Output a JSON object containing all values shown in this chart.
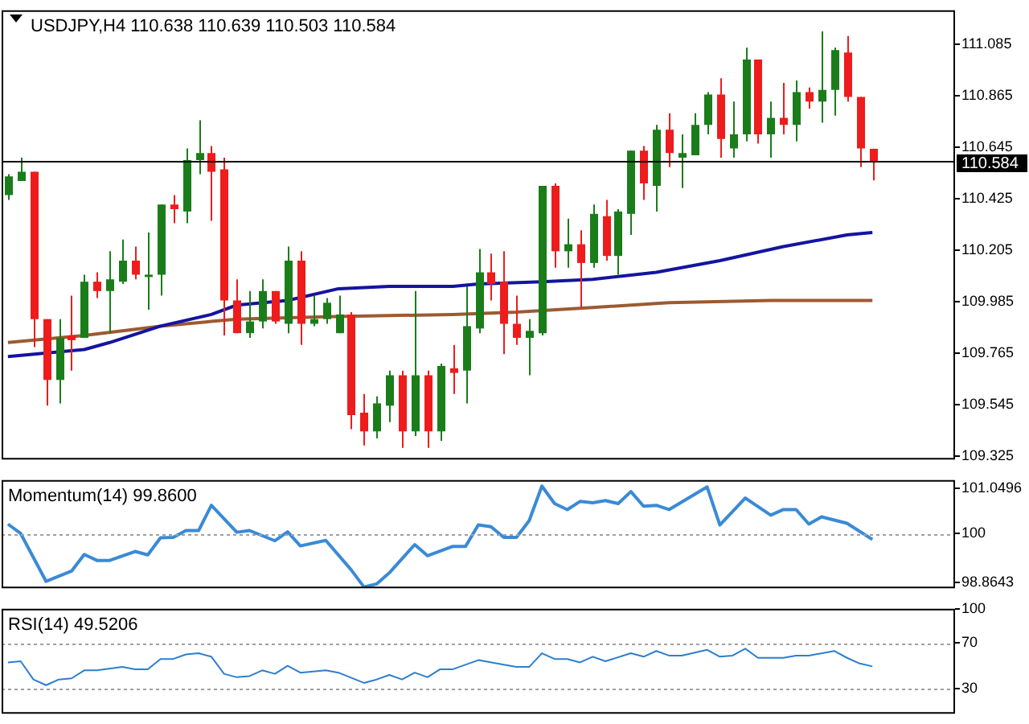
{
  "chart_data": [
    {
      "type": "candlestick",
      "title": "USDJPY,H4 110.638 110.639 110.503 110.584",
      "categories": [
        null,
        null,
        null,
        null,
        null,
        null,
        null,
        null,
        null,
        null,
        null,
        null,
        null,
        null,
        null,
        null,
        null,
        null,
        null,
        null,
        null,
        null,
        null,
        null,
        null,
        null,
        null,
        null,
        null,
        null,
        null,
        null,
        null,
        null,
        null,
        null,
        null,
        null,
        null,
        null,
        null,
        null,
        null,
        null,
        null,
        null,
        null,
        null,
        null,
        null,
        null,
        null,
        null,
        null,
        null,
        null,
        null,
        null,
        null,
        null,
        null,
        null,
        null,
        null,
        null,
        null,
        null,
        null,
        null,
        null,
        null,
        null,
        null,
        null,
        null
      ],
      "ohlc": [
        [
          110.44,
          110.53,
          110.42,
          110.52
        ],
        [
          110.5,
          110.6,
          110.5,
          110.54
        ],
        [
          110.54,
          110.54,
          109.79,
          109.91
        ],
        [
          109.91,
          109.91,
          109.54,
          109.65
        ],
        [
          109.65,
          109.91,
          109.55,
          109.83
        ],
        [
          109.84,
          110.01,
          109.69,
          109.82
        ],
        [
          109.83,
          110.1,
          109.83,
          110.07
        ],
        [
          110.07,
          110.11,
          110.0,
          110.03
        ],
        [
          110.03,
          110.2,
          109.85,
          110.08
        ],
        [
          110.07,
          110.25,
          110.06,
          110.16
        ],
        [
          110.16,
          110.22,
          110.08,
          110.1
        ],
        [
          110.09,
          110.28,
          109.95,
          110.1
        ],
        [
          110.1,
          110.4,
          110.01,
          110.4
        ],
        [
          110.4,
          110.44,
          110.32,
          110.38
        ],
        [
          110.37,
          110.64,
          110.32,
          110.59
        ],
        [
          110.59,
          110.76,
          110.53,
          110.62
        ],
        [
          110.62,
          110.65,
          110.33,
          110.54
        ],
        [
          110.55,
          110.6,
          109.84,
          109.99
        ],
        [
          109.99,
          110.08,
          109.85,
          109.85
        ],
        [
          109.85,
          110.03,
          109.83,
          109.9
        ],
        [
          109.9,
          110.08,
          109.87,
          110.03
        ],
        [
          110.03,
          110.03,
          109.89,
          109.9
        ],
        [
          109.89,
          110.22,
          109.85,
          110.16
        ],
        [
          110.16,
          110.2,
          109.8,
          109.89
        ],
        [
          109.89,
          110.01,
          109.88,
          109.91
        ],
        [
          109.91,
          110.0,
          109.89,
          109.98
        ],
        [
          109.85,
          110.01,
          109.85,
          109.93
        ],
        [
          109.93,
          109.94,
          109.44,
          109.5
        ],
        [
          109.51,
          109.59,
          109.37,
          109.43
        ],
        [
          109.43,
          109.58,
          109.4,
          109.55
        ],
        [
          109.54,
          109.69,
          109.47,
          109.67
        ],
        [
          109.67,
          109.69,
          109.36,
          109.43
        ],
        [
          109.43,
          110.03,
          109.41,
          109.67
        ],
        [
          109.67,
          109.69,
          109.36,
          109.43
        ],
        [
          109.43,
          109.72,
          109.39,
          109.71
        ],
        [
          109.7,
          109.8,
          109.59,
          109.68
        ],
        [
          109.69,
          110.05,
          109.55,
          109.88
        ],
        [
          109.87,
          110.21,
          109.85,
          110.11
        ],
        [
          110.11,
          110.19,
          109.99,
          110.06
        ],
        [
          110.07,
          110.2,
          109.76,
          109.89
        ],
        [
          109.89,
          110.01,
          109.8,
          109.83
        ],
        [
          109.83,
          109.91,
          109.67,
          109.86
        ],
        [
          109.85,
          110.48,
          109.84,
          110.48
        ],
        [
          110.48,
          110.49,
          110.13,
          110.2
        ],
        [
          110.2,
          110.34,
          110.13,
          110.23
        ],
        [
          110.23,
          110.29,
          109.96,
          110.15
        ],
        [
          110.15,
          110.4,
          110.13,
          110.36
        ],
        [
          110.35,
          110.42,
          110.16,
          110.18
        ],
        [
          110.18,
          110.38,
          110.1,
          110.37
        ],
        [
          110.36,
          110.63,
          110.27,
          110.63
        ],
        [
          110.63,
          110.65,
          110.42,
          110.49
        ],
        [
          110.48,
          110.74,
          110.37,
          110.72
        ],
        [
          110.72,
          110.79,
          110.56,
          110.62
        ],
        [
          110.6,
          110.7,
          110.47,
          110.62
        ],
        [
          110.61,
          110.79,
          110.61,
          110.74
        ],
        [
          110.74,
          110.88,
          110.7,
          110.87
        ],
        [
          110.87,
          110.94,
          110.6,
          110.68
        ],
        [
          110.64,
          110.84,
          110.6,
          110.7
        ],
        [
          110.7,
          111.07,
          110.67,
          111.02
        ],
        [
          111.02,
          111.02,
          110.66,
          110.7
        ],
        [
          110.7,
          110.84,
          110.6,
          110.77
        ],
        [
          110.77,
          110.92,
          110.7,
          110.74
        ],
        [
          110.74,
          110.93,
          110.67,
          110.88
        ],
        [
          110.88,
          110.9,
          110.81,
          110.84
        ],
        [
          110.84,
          111.14,
          110.75,
          110.89
        ],
        [
          110.89,
          111.07,
          110.78,
          111.06
        ],
        [
          111.05,
          111.12,
          110.84,
          110.86
        ],
        [
          110.86,
          110.86,
          110.56,
          110.64
        ],
        [
          110.638,
          110.639,
          110.503,
          110.584
        ],
        null,
        null,
        null,
        null,
        null,
        null
      ],
      "colors": [
        "#1a7d1a",
        "#1a7d1a",
        "#ee1c1c",
        "#ee1c1c",
        "#1a7d1a",
        "#ee1c1c",
        "#1a7d1a",
        "#ee1c1c",
        "#1a7d1a",
        "#1a7d1a",
        "#ee1c1c",
        "#1a7d1a",
        "#1a7d1a",
        "#ee1c1c",
        "#1a7d1a",
        "#1a7d1a",
        "#ee1c1c",
        "#ee1c1c",
        "#ee1c1c",
        "#1a7d1a",
        "#1a7d1a",
        "#ee1c1c",
        "#1a7d1a",
        "#ee1c1c",
        "#1a7d1a",
        "#1a7d1a",
        "#1a7d1a",
        "#ee1c1c",
        "#ee1c1c",
        "#1a7d1a",
        "#1a7d1a",
        "#ee1c1c",
        "#1a7d1a",
        "#ee1c1c",
        "#1a7d1a",
        "#ee1c1c",
        "#1a7d1a",
        "#1a7d1a",
        "#ee1c1c",
        "#ee1c1c",
        "#ee1c1c",
        "#1a7d1a",
        "#1a7d1a",
        "#ee1c1c",
        "#1a7d1a",
        "#ee1c1c",
        "#1a7d1a",
        "#ee1c1c",
        "#1a7d1a",
        "#1a7d1a",
        "#ee1c1c",
        "#1a7d1a",
        "#ee1c1c",
        "#1a7d1a",
        "#1a7d1a",
        "#1a7d1a",
        "#ee1c1c",
        "#1a7d1a",
        "#1a7d1a",
        "#ee1c1c",
        "#1a7d1a",
        "#ee1c1c",
        "#1a7d1a",
        "#ee1c1c",
        "#1a7d1a",
        "#1a7d1a",
        "#ee1c1c",
        "#ee1c1c",
        "#ee1c1c",
        null,
        null,
        null,
        null,
        null,
        null
      ],
      "series": [
        {
          "type": "line",
          "color": "#1414a0",
          "values": [
            109.75,
            null,
            null,
            null,
            null,
            null,
            109.78,
            null,
            109.81,
            null,
            null,
            null,
            109.88,
            null,
            null,
            null,
            109.93,
            null,
            109.97,
            null,
            null,
            null,
            109.99,
            null,
            null,
            null,
            110.04,
            null,
            null,
            null,
            110.05,
            null,
            null,
            null,
            null,
            110.05,
            null,
            110.06,
            null,
            null,
            null,
            null,
            110.07,
            null,
            null,
            null,
            110.08,
            null,
            null,
            null,
            null,
            110.11,
            null,
            null,
            null,
            null,
            110.16,
            null,
            null,
            null,
            null,
            110.22,
            null,
            null,
            null,
            null,
            110.27,
            null,
            110.28,
            null,
            null,
            null,
            null,
            null,
            null
          ]
        },
        {
          "type": "line",
          "color": "#9c5a32",
          "values": [
            109.81,
            null,
            null,
            null,
            null,
            null,
            109.84,
            null,
            null,
            null,
            null,
            null,
            109.88,
            null,
            null,
            null,
            109.9,
            null,
            109.91,
            null,
            null,
            null,
            null,
            null,
            null,
            109.92,
            null,
            null,
            null,
            null,
            null,
            null,
            null,
            null,
            null,
            109.93,
            null,
            null,
            null,
            null,
            109.94,
            null,
            null,
            null,
            null,
            null,
            109.96,
            null,
            null,
            null,
            null,
            null,
            109.98,
            null,
            null,
            null,
            null,
            null,
            null,
            null,
            109.99,
            null,
            null,
            null,
            null,
            null,
            null,
            null,
            109.99,
            null,
            null,
            null,
            null,
            null,
            null
          ]
        }
      ],
      "ylim": [
        109.31,
        111.23
      ],
      "yticks": [
        109.325,
        109.545,
        109.765,
        109.985,
        110.205,
        110.425,
        110.645,
        110.865,
        111.085
      ],
      "ref_lines": [
        {
          "axis": "y",
          "value": 110.584,
          "label": "110.584",
          "color": "#000000",
          "line_style": "solid"
        }
      ],
      "tick_labels": "y"
    },
    {
      "type": "line",
      "title": "Momentum(14) 99.8600",
      "categories": [
        null,
        null,
        null,
        null,
        null,
        null,
        null,
        null,
        null,
        null,
        null,
        null,
        null,
        null,
        null,
        null,
        null,
        null,
        null,
        null,
        null,
        null,
        null,
        null,
        null,
        null,
        null,
        null,
        null,
        null,
        null,
        null,
        null,
        null,
        null,
        null,
        null,
        null,
        null,
        null,
        null,
        null,
        null,
        null,
        null,
        null,
        null,
        null,
        null,
        null,
        null,
        null,
        null,
        null,
        null,
        null,
        null,
        null,
        null,
        null,
        null,
        null,
        null,
        null,
        null,
        null,
        null,
        null,
        null,
        null,
        null,
        null,
        null,
        null,
        null
      ],
      "series": [
        {
          "color": "#3a8ad6",
          "values": [
            100.22,
            100.0,
            null,
            98.88,
            null,
            99.12,
            99.51,
            99.37,
            99.37,
            null,
            99.58,
            99.5,
            99.9,
            99.91,
            100.07,
            100.07,
            100.66,
            null,
            100.03,
            100.07,
            null,
            99.83,
            100.04,
            99.71,
            null,
            99.84,
            null,
            99.15,
            98.75,
            98.82,
            99.08,
            null,
            99.74,
            99.48,
            null,
            99.7,
            99.7,
            100.2,
            100.16,
            99.91,
            99.91,
            100.3,
            101.11,
            100.7,
            100.56,
            100.75,
            100.72,
            100.77,
            100.7,
            100.98,
            100.64,
            100.66,
            100.56,
            null,
            null,
            101.09,
            100.2,
            null,
            100.83,
            null,
            100.43,
            100.56,
            100.56,
            100.22,
            100.39,
            null,
            100.24,
            null,
            99.86,
            null,
            null,
            null,
            null,
            null,
            null
          ]
        }
      ],
      "ylim": [
        98.72,
        101.25
      ],
      "yticks": [
        98.8643,
        100,
        101.0496
      ],
      "ref_lines": [
        {
          "axis": "y",
          "value": 100,
          "color": "#a0a0a0",
          "line_style": "dotted"
        }
      ],
      "tick_labels": "y"
    },
    {
      "type": "line",
      "title": "RSI(14) 49.5206",
      "categories": [
        null,
        null,
        null,
        null,
        null,
        null,
        null,
        null,
        null,
        null,
        null,
        null,
        null,
        null,
        null,
        null,
        null,
        null,
        null,
        null,
        null,
        null,
        null,
        null,
        null,
        null,
        null,
        null,
        null,
        null,
        null,
        null,
        null,
        null,
        null,
        null,
        null,
        null,
        null,
        null,
        null,
        null,
        null,
        null,
        null,
        null,
        null,
        null,
        null,
        null,
        null,
        null,
        null,
        null,
        null,
        null,
        null,
        null,
        null,
        null,
        null,
        null,
        null,
        null,
        null,
        null,
        null,
        null,
        null,
        null,
        null,
        null,
        null,
        null,
        null
      ],
      "series": [
        {
          "color": "#2b7fcf",
          "values": [
            53,
            54,
            38,
            33,
            38,
            39,
            46,
            46,
            null,
            49,
            47,
            47,
            56,
            56,
            60,
            61,
            58,
            43,
            40,
            41,
            46,
            43,
            50,
            44,
            null,
            46,
            44,
            null,
            35,
            38,
            42,
            38,
            44,
            40,
            47,
            47,
            null,
            55,
            null,
            51,
            49,
            49,
            61,
            56,
            56,
            53,
            58,
            54,
            null,
            61,
            58,
            63,
            59,
            59,
            null,
            64,
            58,
            59,
            65,
            57,
            null,
            57,
            59,
            59,
            null,
            63,
            57,
            52,
            49.5,
            null,
            null,
            null,
            null,
            null,
            null
          ]
        }
      ],
      "ylim": [
        8,
        100
      ],
      "yticks": [
        30,
        70,
        100
      ],
      "ref_lines": [
        {
          "axis": "y",
          "value": 70,
          "color": "#a0a0a0",
          "line_style": "dotted"
        },
        {
          "axis": "y",
          "value": 30,
          "color": "#a0a0a0",
          "line_style": "dotted"
        }
      ],
      "tick_labels": "y"
    }
  ]
}
